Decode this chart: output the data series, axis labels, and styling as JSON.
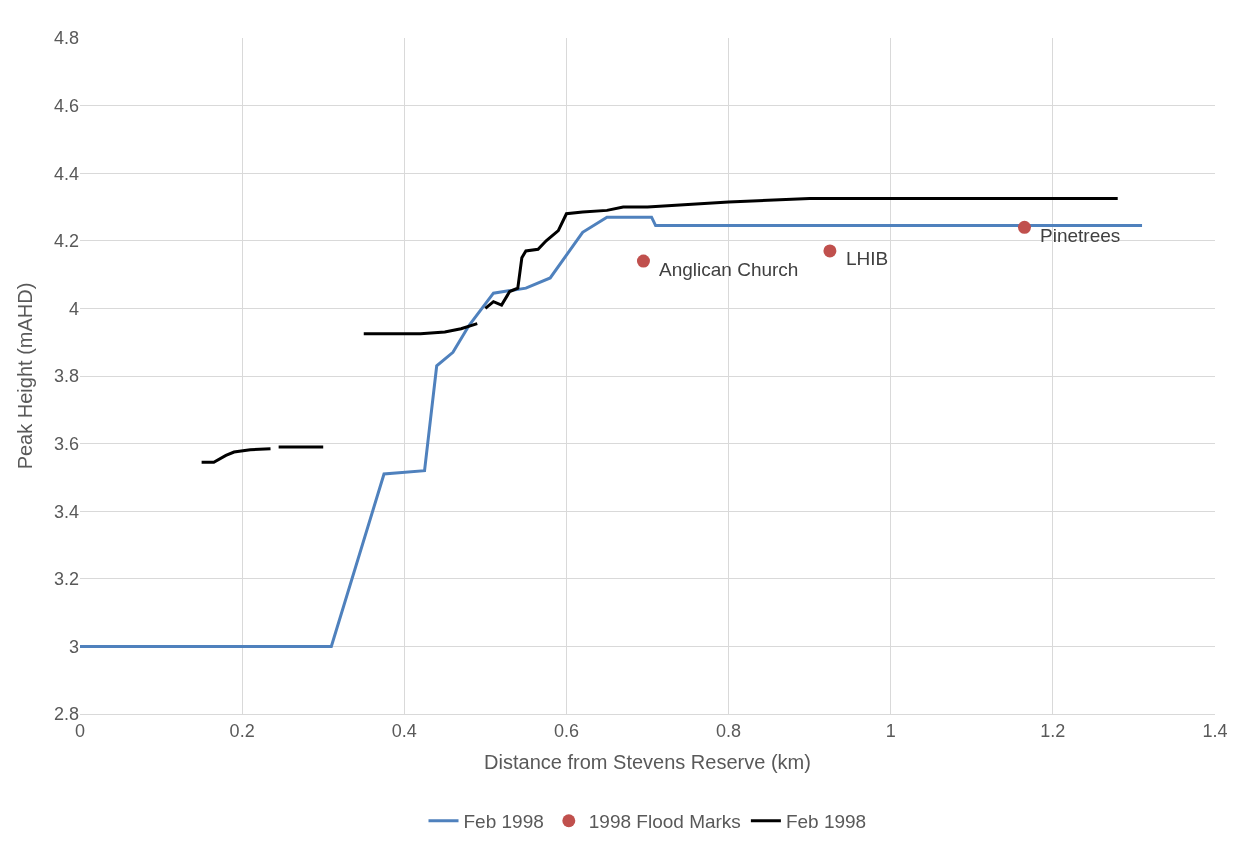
{
  "chart_data": {
    "type": "line",
    "xlabel": "Distance from Stevens Reserve (km)",
    "ylabel": "Peak Height (mAHD)",
    "xlim": [
      0,
      1.4
    ],
    "xticks": [
      0,
      0.2,
      0.4,
      0.6,
      0.8,
      1,
      1.2,
      1.4
    ],
    "ylim": [
      2.8,
      4.8
    ],
    "yticks": [
      2.8,
      3,
      3.2,
      3.4,
      3.6,
      3.8,
      4,
      4.2,
      4.4,
      4.6,
      4.8
    ],
    "grid": true,
    "legend": "bottom",
    "series": [
      {
        "name": "Feb 1998",
        "color": "#4f81bd",
        "marker": "none",
        "x": [
          0,
          0.31,
          0.375,
          0.425,
          0.44,
          0.46,
          0.48,
          0.51,
          0.55,
          0.58,
          0.62,
          0.65,
          0.705,
          0.71,
          1.31
        ],
        "values": [
          3,
          3,
          3.51,
          3.52,
          3.83,
          3.87,
          3.95,
          4.045,
          4.06,
          4.09,
          4.225,
          4.27,
          4.27,
          4.245,
          4.245
        ]
      },
      {
        "name": "1998 Flood Marks",
        "type": "scatter",
        "color": "#c0504d",
        "marker": "circle",
        "x": [
          0.695,
          0.925,
          1.165
        ],
        "values": [
          4.14,
          4.17,
          4.24
        ]
      },
      {
        "name": "Feb 1998",
        "color": "#000000",
        "marker": "none",
        "x": [
          0.15,
          0.165,
          0.18,
          0.19,
          0.21,
          0.235,
          0.24,
          0.245,
          0.3,
          0.32,
          0.35,
          0.42,
          0.45,
          0.47,
          0.49,
          0.495,
          0.5,
          0.51,
          0.52,
          0.53,
          0.54,
          0.545,
          0.55,
          0.565,
          0.575,
          0.59,
          0.6,
          0.62,
          0.65,
          0.67,
          0.7,
          0.8,
          0.9,
          1.0,
          1.1,
          1.28
        ],
        "values": [
          3.545,
          3.545,
          3.565,
          3.575,
          3.582,
          3.585,
          null,
          3.59,
          3.59,
          null,
          3.925,
          3.925,
          3.93,
          3.94,
          3.955,
          null,
          4.0,
          4.02,
          4.01,
          4.05,
          4.06,
          4.15,
          4.17,
          4.175,
          4.2,
          4.23,
          4.28,
          4.285,
          4.29,
          4.3,
          4.3,
          4.315,
          4.325,
          4.325,
          4.325,
          4.325
        ]
      }
    ],
    "annotations": [
      {
        "text": "Anglican Church",
        "x": 0.695,
        "y": 4.14
      },
      {
        "text": "LHIB",
        "x": 0.925,
        "y": 4.17
      },
      {
        "text": "Pinetrees",
        "x": 1.165,
        "y": 4.24
      }
    ]
  }
}
